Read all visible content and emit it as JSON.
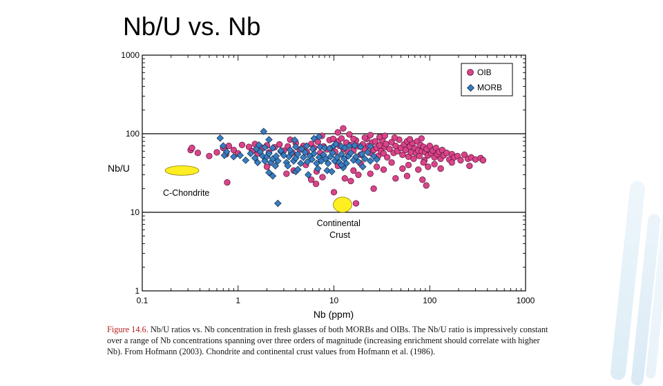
{
  "slide": {
    "title": "Nb/U vs. Nb"
  },
  "caption": {
    "label": "Figure 14.6.",
    "text": " Nb/U ratios vs. Nb concentration in fresh glasses of both MORBs and OIBs. The Nb/U ratio is impressively constant over a range of Nb concentrations spanning over three orders of magnitude (increasing enrichment should correlate with higher Nb). From Hofmann (2003). Chondrite and continental crust values from Hofmann et al. (1986)."
  },
  "colors": {
    "oib": "#d9448a",
    "morb": "#3a7cc0",
    "field": "#ffee22",
    "caption_label": "#b21d1d",
    "accent_deco": "#cfe6f4"
  },
  "chart_data": {
    "type": "scatter",
    "title": "",
    "xlabel": "Nb (ppm)",
    "ylabel": "Nb/U",
    "xscale": "log",
    "yscale": "log",
    "xlim": [
      0.1,
      1000
    ],
    "ylim": [
      1,
      1000
    ],
    "x_ticks": [
      "0.1",
      "1",
      "10",
      "100",
      "1000"
    ],
    "y_ticks": [
      "1",
      "10",
      "100",
      "1000"
    ],
    "reference_lines_y": [
      10,
      100
    ],
    "legend": {
      "position": "top-right",
      "entries": [
        "OIB",
        "MORB"
      ]
    },
    "annotations": [
      {
        "label": "C-Chondrite",
        "x": 0.3,
        "y": 30
      },
      {
        "label": "Continental\nCrust",
        "x": 12,
        "y": 10
      }
    ],
    "fields": [
      {
        "name": "C-Chondrite",
        "x": 0.26,
        "y": 34,
        "spread_x": 1.5,
        "spread_y": 1.15
      },
      {
        "name": "Continental Crust",
        "x": 12.3,
        "y": 12.5,
        "spread_x": 1.25,
        "spread_y": 1.25
      }
    ],
    "series": [
      {
        "name": "OIB",
        "marker": "circle",
        "points": [
          [
            0.32,
            62
          ],
          [
            0.38,
            57
          ],
          [
            0.33,
            66
          ],
          [
            0.5,
            52
          ],
          [
            0.6,
            58
          ],
          [
            0.7,
            66
          ],
          [
            0.75,
            55
          ],
          [
            0.9,
            62
          ],
          [
            0.8,
            70
          ],
          [
            1.0,
            56
          ],
          [
            1.1,
            72
          ],
          [
            1.3,
            68
          ],
          [
            1.5,
            74
          ],
          [
            1.4,
            60
          ],
          [
            1.6,
            56
          ],
          [
            1.8,
            66
          ],
          [
            2.0,
            71
          ],
          [
            2.1,
            58
          ],
          [
            2.4,
            67
          ],
          [
            2.7,
            73
          ],
          [
            3.0,
            61
          ],
          [
            3.3,
            69
          ],
          [
            3.7,
            57
          ],
          [
            4.0,
            76
          ],
          [
            4.4,
            63
          ],
          [
            4.8,
            70
          ],
          [
            5.2,
            59
          ],
          [
            5.8,
            74
          ],
          [
            6.2,
            66
          ],
          [
            6.8,
            79
          ],
          [
            7.2,
            57
          ],
          [
            7.8,
            69
          ],
          [
            8.5,
            63
          ],
          [
            9.0,
            83
          ],
          [
            9.6,
            66
          ],
          [
            10.3,
            59
          ],
          [
            11,
            80
          ],
          [
            11.5,
            70
          ],
          [
            12,
            87
          ],
          [
            12.6,
            64
          ],
          [
            13.5,
            77
          ],
          [
            14,
            58
          ],
          [
            15,
            72
          ],
          [
            16,
            61
          ],
          [
            17,
            82
          ],
          [
            18,
            69
          ],
          [
            19,
            54
          ],
          [
            20,
            73
          ],
          [
            21,
            64
          ],
          [
            22,
            86
          ],
          [
            23,
            70
          ],
          [
            24,
            57
          ],
          [
            25,
            77
          ],
          [
            26,
            62
          ],
          [
            27,
            80
          ],
          [
            28,
            66
          ],
          [
            29,
            52
          ],
          [
            30,
            71
          ],
          [
            31,
            60
          ],
          [
            32,
            82
          ],
          [
            33,
            56
          ],
          [
            34,
            68
          ],
          [
            35,
            74
          ],
          [
            36,
            50
          ],
          [
            38,
            64
          ],
          [
            40,
            78
          ],
          [
            42,
            57
          ],
          [
            44,
            70
          ],
          [
            46,
            60
          ],
          [
            48,
            84
          ],
          [
            50,
            66
          ],
          [
            52,
            54
          ],
          [
            54,
            73
          ],
          [
            56,
            62
          ],
          [
            58,
            80
          ],
          [
            60,
            51
          ],
          [
            62,
            69
          ],
          [
            64,
            58
          ],
          [
            66,
            76
          ],
          [
            68,
            48
          ],
          [
            70,
            65
          ],
          [
            72,
            57
          ],
          [
            74,
            80
          ],
          [
            76,
            61
          ],
          [
            78,
            52
          ],
          [
            80,
            72
          ],
          [
            83,
            60
          ],
          [
            86,
            68
          ],
          [
            88,
            46
          ],
          [
            90,
            58
          ],
          [
            93,
            64
          ],
          [
            96,
            53
          ],
          [
            100,
            70
          ],
          [
            104,
            56
          ],
          [
            108,
            61
          ],
          [
            112,
            50
          ],
          [
            116,
            66
          ],
          [
            120,
            55
          ],
          [
            125,
            59
          ],
          [
            130,
            48
          ],
          [
            135,
            62
          ],
          [
            140,
            53
          ],
          [
            150,
            57
          ],
          [
            160,
            47
          ],
          [
            170,
            55
          ],
          [
            180,
            50
          ],
          [
            195,
            52
          ],
          [
            210,
            46
          ],
          [
            230,
            54
          ],
          [
            250,
            48
          ],
          [
            270,
            50
          ],
          [
            300,
            47
          ],
          [
            340,
            49
          ],
          [
            360,
            46
          ],
          [
            12.5,
            117
          ],
          [
            11,
            104
          ],
          [
            14.5,
            98
          ],
          [
            16,
            86
          ],
          [
            7.5,
            94
          ],
          [
            9.8,
            86
          ],
          [
            21,
            89
          ],
          [
            24,
            96
          ],
          [
            30,
            91
          ],
          [
            34,
            94
          ],
          [
            43,
            89
          ],
          [
            62,
            85
          ],
          [
            82,
            87
          ],
          [
            3.5,
            84
          ],
          [
            2.0,
            38
          ],
          [
            3.2,
            31
          ],
          [
            3.8,
            34
          ],
          [
            5.1,
            40
          ],
          [
            6.6,
            33
          ],
          [
            11,
            39
          ],
          [
            16,
            34
          ],
          [
            19,
            42
          ],
          [
            24,
            31
          ],
          [
            28,
            38
          ],
          [
            33,
            35
          ],
          [
            40,
            43
          ],
          [
            52,
            36
          ],
          [
            60,
            40
          ],
          [
            76,
            35
          ],
          [
            86,
            43
          ],
          [
            96,
            38
          ],
          [
            112,
            41
          ],
          [
            130,
            36
          ],
          [
            170,
            43
          ],
          [
            260,
            39
          ],
          [
            5.8,
            26
          ],
          [
            7.6,
            28
          ],
          [
            13,
            27
          ],
          [
            15,
            25
          ],
          [
            18,
            30
          ],
          [
            44,
            27
          ],
          [
            58,
            29
          ],
          [
            84,
            26
          ],
          [
            92,
            22
          ],
          [
            0.77,
            24
          ],
          [
            6.5,
            23
          ],
          [
            10,
            18
          ],
          [
            17,
            13
          ],
          [
            26,
            20
          ]
        ]
      },
      {
        "name": "MORB",
        "marker": "diamond",
        "points": [
          [
            0.65,
            88
          ],
          [
            0.7,
            70
          ],
          [
            0.72,
            53
          ],
          [
            0.76,
            59
          ],
          [
            0.9,
            51
          ],
          [
            1.05,
            53
          ],
          [
            1.2,
            46
          ],
          [
            1.35,
            56
          ],
          [
            1.5,
            49
          ],
          [
            1.6,
            43
          ],
          [
            1.7,
            59
          ],
          [
            1.8,
            52
          ],
          [
            1.9,
            45
          ],
          [
            2.0,
            51
          ],
          [
            2.1,
            56
          ],
          [
            2.2,
            43
          ],
          [
            2.3,
            48
          ],
          [
            2.5,
            52
          ],
          [
            2.6,
            45
          ],
          [
            2.8,
            59
          ],
          [
            3.0,
            53
          ],
          [
            3.2,
            43
          ],
          [
            3.4,
            51
          ],
          [
            3.6,
            57
          ],
          [
            3.8,
            45
          ],
          [
            4.0,
            49
          ],
          [
            4.2,
            55
          ],
          [
            4.5,
            42
          ],
          [
            4.8,
            50
          ],
          [
            5.0,
            58
          ],
          [
            5.3,
            44
          ],
          [
            5.6,
            52
          ],
          [
            5.9,
            47
          ],
          [
            6.2,
            56
          ],
          [
            6.6,
            42
          ],
          [
            7.0,
            50
          ],
          [
            7.4,
            45
          ],
          [
            7.8,
            54
          ],
          [
            8.2,
            48
          ],
          [
            8.7,
            42
          ],
          [
            9.2,
            51
          ],
          [
            9.7,
            57
          ],
          [
            10.2,
            45
          ],
          [
            10.8,
            50
          ],
          [
            11.4,
            43
          ],
          [
            12,
            55
          ],
          [
            12.8,
            48
          ],
          [
            13.5,
            42
          ],
          [
            14.2,
            52
          ],
          [
            15,
            57
          ],
          [
            16,
            46
          ],
          [
            17,
            51
          ],
          [
            18,
            44
          ],
          [
            19.5,
            55
          ],
          [
            21,
            48
          ],
          [
            22.5,
            58
          ],
          [
            24,
            45
          ],
          [
            26,
            52
          ],
          [
            28,
            47
          ],
          [
            1.85,
            107
          ],
          [
            1.55,
            64
          ],
          [
            1.9,
            67
          ],
          [
            2.3,
            66
          ],
          [
            2.8,
            61
          ],
          [
            3.5,
            62
          ],
          [
            4.0,
            68
          ],
          [
            4.6,
            64
          ],
          [
            5.2,
            70
          ],
          [
            6.0,
            64
          ],
          [
            7.2,
            68
          ],
          [
            8.0,
            66
          ],
          [
            9.0,
            65
          ],
          [
            10,
            70
          ],
          [
            10.5,
            74
          ],
          [
            12,
            69
          ],
          [
            13,
            66
          ],
          [
            14.5,
            70
          ],
          [
            16.5,
            71
          ],
          [
            19,
            68
          ],
          [
            24,
            69
          ],
          [
            6.2,
            87
          ],
          [
            7.0,
            92
          ],
          [
            3.9,
            83
          ],
          [
            2.1,
            84
          ],
          [
            1.65,
            72
          ],
          [
            2.1,
            32
          ],
          [
            2.3,
            29
          ],
          [
            4.0,
            33
          ],
          [
            5.4,
            30
          ],
          [
            6.8,
            36
          ],
          [
            8.5,
            34
          ],
          [
            9.5,
            33
          ],
          [
            2.45,
            39
          ],
          [
            3.3,
            39
          ],
          [
            4.2,
            35
          ],
          [
            12.5,
            37
          ],
          [
            20,
            38
          ],
          [
            12,
            40
          ],
          [
            2.6,
            13
          ]
        ]
      }
    ]
  }
}
